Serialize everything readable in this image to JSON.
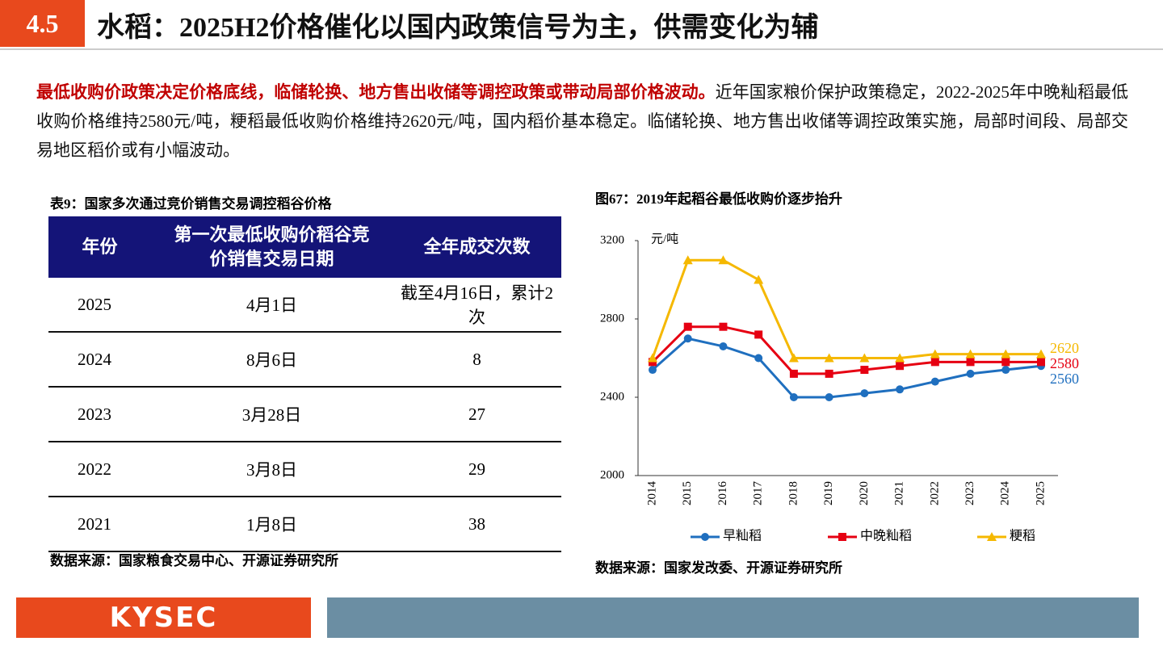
{
  "header": {
    "number": "4.5",
    "title": "水稻：2025H2价格催化以国内政策信号为主，供需变化为辅"
  },
  "paragraph": {
    "emphasis": "最低收购价政策决定价格底线，临储轮换、地方售出收储等调控政策或带动局部价格波动。",
    "body": "近年国家粮价保护政策稳定，2022-2025年中晚籼稻最低收购价格维持2580元/吨，粳稻最低收购价格维持2620元/吨，国内稻价基本稳定。临储轮换、地方售出收储等调控政策实施，局部时间段、局部交易地区稻价或有小幅波动。"
  },
  "table": {
    "caption": "表9：国家多次通过竞价销售交易调控稻谷价格",
    "columns": [
      "年份",
      "第一次最低收购价稻谷竞价销售交易日期",
      "全年成交次数"
    ],
    "rows": [
      [
        "2025",
        "4月1日",
        "截至4月16日，累计2次"
      ],
      [
        "2024",
        "8月6日",
        "8"
      ],
      [
        "2023",
        "3月28日",
        "27"
      ],
      [
        "2022",
        "3月8日",
        "29"
      ],
      [
        "2021",
        "1月8日",
        "38"
      ]
    ],
    "source": "数据来源：国家粮食交易中心、开源证券研究所"
  },
  "chart_data": {
    "type": "line",
    "title": "图67：2019年起稻谷最低收购价逐步抬升",
    "y_unit": "元/吨",
    "categories": [
      "2014",
      "2015",
      "2016",
      "2017",
      "2018",
      "2019",
      "2020",
      "2021",
      "2022",
      "2023",
      "2024",
      "2025"
    ],
    "ylim": [
      2000,
      3200
    ],
    "yticks": [
      2000,
      2400,
      2800,
      3200
    ],
    "series": [
      {
        "name": "早籼稻",
        "color": "#1f6fbf",
        "marker": "circle",
        "values": [
          2540,
          2700,
          2660,
          2600,
          2400,
          2400,
          2420,
          2440,
          2480,
          2520,
          2540,
          2560
        ]
      },
      {
        "name": "中晚籼稻",
        "color": "#e60012",
        "marker": "square",
        "values": [
          2580,
          2760,
          2760,
          2720,
          2520,
          2520,
          2540,
          2560,
          2580,
          2580,
          2580,
          2580
        ]
      },
      {
        "name": "粳稻",
        "color": "#f5b800",
        "marker": "triangle",
        "values": [
          2600,
          3100,
          3100,
          3000,
          2600,
          2600,
          2600,
          2600,
          2620,
          2620,
          2620,
          2620
        ]
      }
    ],
    "source": "数据来源：国家发改委、开源证券研究所"
  },
  "footer": {
    "logo": "KYSEC"
  }
}
